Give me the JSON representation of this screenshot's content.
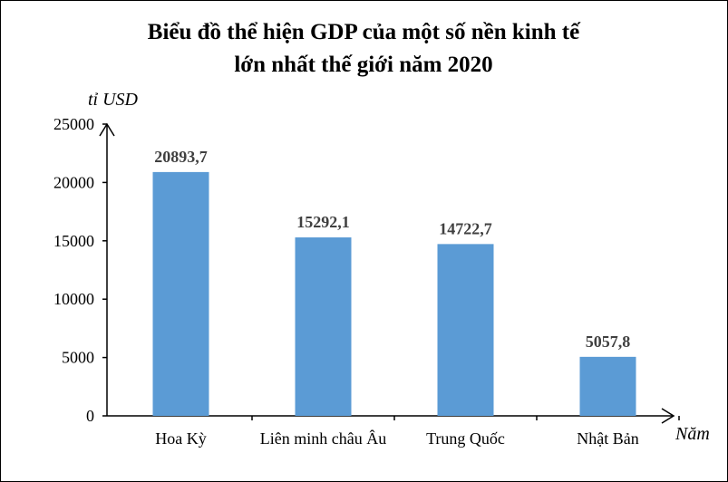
{
  "chart_data": {
    "type": "bar",
    "title_line1": "Biểu đồ thể hiện GDP của một số nền kinh tế",
    "title_line2": "lớn nhất thế giới năm 2020",
    "ylabel": "tỉ USD",
    "xlabel": "Năm",
    "categories": [
      "Hoa Kỳ",
      "Liên minh châu Âu",
      "Trung Quốc",
      "Nhật Bản"
    ],
    "values": [
      20893.7,
      15292.1,
      14722.7,
      5057.8
    ],
    "data_labels": [
      "20893,7",
      "15292,1",
      "14722,7",
      "5057,8"
    ],
    "ylim": [
      0,
      25000
    ],
    "yticks": [
      0,
      5000,
      10000,
      15000,
      20000,
      25000
    ],
    "bar_color": "#5B9BD5",
    "grid": false,
    "legend": "none"
  }
}
